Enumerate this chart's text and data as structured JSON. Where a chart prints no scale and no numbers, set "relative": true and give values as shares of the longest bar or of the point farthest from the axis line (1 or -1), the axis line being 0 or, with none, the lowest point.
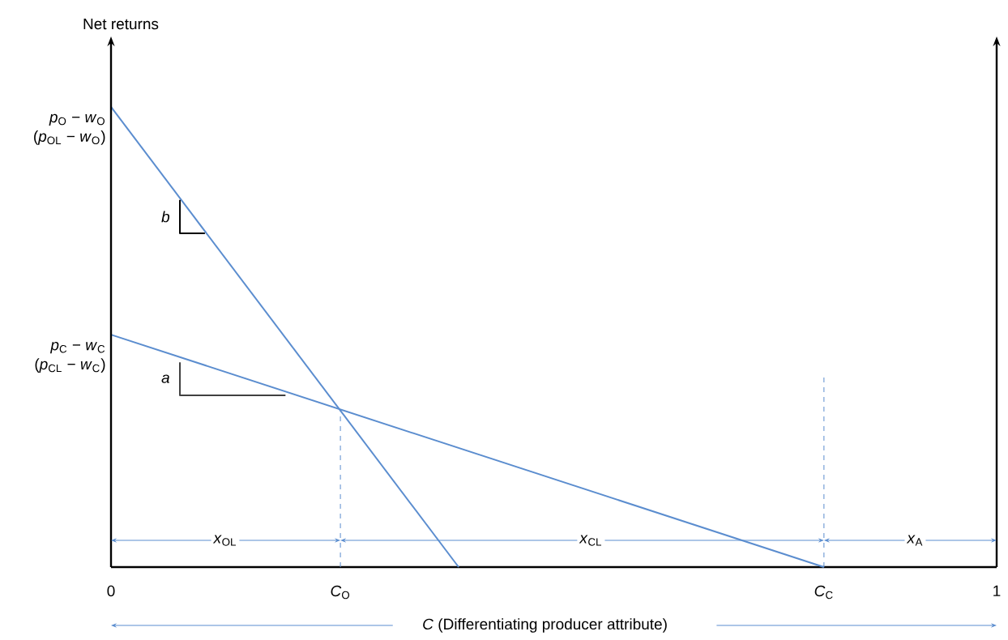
{
  "chart_data": {
    "type": "line",
    "relative": true,
    "xlabel": "*C* (Differentiating producer attribute)",
    "xlim": [
      0,
      1
    ],
    "xticks": [
      0,
      {
        "value": 0.259,
        "label": "*C*$_{O}$"
      },
      {
        "value": 0.805,
        "label": "*C*$_{C}$"
      },
      1
    ],
    "marker": "none",
    "series": [
      {
        "color": "#5b8dcf",
        "x": [
          0,
          0.3925
        ],
        "values": [
          1,
          0
        ]
      },
      {
        "color": "#5b8dcf",
        "x": [
          0,
          0.805
        ],
        "values": [
          0.505,
          0
        ]
      },
      {
        "color": "#5b8dcf",
        "line_style": "dashed",
        "x": [
          0.259,
          0.259
        ],
        "values": [
          0,
          0.343
        ]
      },
      {
        "color": "#5b8dcf",
        "line_style": "dashed",
        "x": [
          0.805,
          0.805
        ],
        "values": [
          0,
          0.414
        ]
      },
      {
        "color": "#000000",
        "x": [
          0.0778,
          0.0778,
          0.106
        ],
        "values": [
          0.798,
          0.725,
          0.725
        ]
      },
      {
        "color": "#404040",
        "x": [
          0.0778,
          0.0778,
          0.197
        ],
        "values": [
          0.445,
          0.373,
          0.373
        ]
      }
    ],
    "annotations": [
      {
        "text": "*p*$_{O}$ − *w*$_{O}$",
        "x": 0,
        "y": 1
      },
      {
        "text": "(*p*$_{OL}$ − *w*$_{O}$)",
        "x": 0,
        "y": 1
      },
      {
        "text": "*p*$_{C}$ − *w*$_{C}$",
        "x": 0,
        "y": 0.505
      },
      {
        "text": "(*p*$_{CL}$ − *w*$_{C}$)",
        "x": 0,
        "y": 0.505
      },
      "*b*",
      "*a*",
      {
        "text": "*x*$_{OL}$",
        "x": 0.129,
        "y": 0.058
      },
      {
        "text": "*x*$_{CL}$",
        "x": 0.542,
        "y": 0.058
      },
      {
        "text": "*x*$_{A}$",
        "x": 0.908,
        "y": 0.058
      },
      "Net returns"
    ]
  }
}
